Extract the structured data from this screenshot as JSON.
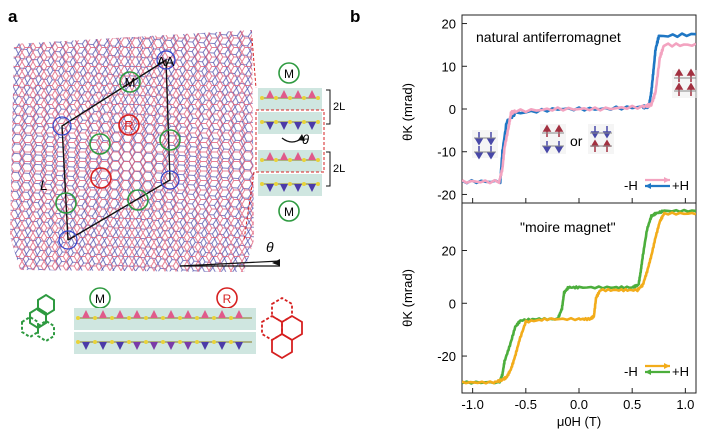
{
  "panel_a": {
    "letter": "a",
    "circle_m": "M",
    "circle_r": "R",
    "aa_label": "AA",
    "length_label": "L",
    "theta": "θ",
    "bilayer_label": "2L"
  },
  "panel_b": {
    "letter": "b",
    "top_title": "natural antiferromagnet",
    "bottom_title": "\"moire magnet\"",
    "or_text": "or",
    "ylabel_top": "θK (mrad)",
    "ylabel_bottom": "θK (mrad)",
    "xlabel": "μ0H (T)",
    "legend_minus": "-H",
    "legend_plus": "+H"
  },
  "colors": {
    "lattice_red": "#e0607a",
    "lattice_blue": "#5a5ab0",
    "m_green": "#2e9a40",
    "r_red": "#d62020",
    "blue_trace": "#1f77c4",
    "pink_trace": "#f3a3c0",
    "green_trace": "#4cae3c",
    "orange_trace": "#f2ac1a",
    "layer_bg": "#cfe6e0"
  },
  "chart_data": [
    {
      "type": "line",
      "title": "natural antiferromagnet",
      "xlabel": "μ0H (T)",
      "ylabel": "θK (mrad)",
      "xlim": [
        -1.1,
        1.1
      ],
      "ylim": [
        -22,
        22
      ],
      "yticks": [
        -20,
        -10,
        0,
        10,
        20
      ],
      "xticks": [
        -1.0,
        -0.5,
        0.0,
        0.5,
        1.0
      ],
      "series": [
        {
          "name": "-H",
          "color": "#1f77c4",
          "x": [
            1.1,
            0.75,
            0.72,
            0.7,
            0.68,
            0.66,
            0.64,
            0.6,
            0.2,
            -0.2,
            -0.6,
            -0.68,
            -0.72,
            -0.74,
            -1.1
          ],
          "y": [
            17.5,
            17,
            14,
            9,
            4,
            1,
            0.5,
            0.5,
            0,
            0,
            -1,
            -3,
            -10,
            -17,
            -17
          ]
        },
        {
          "name": "+H",
          "color": "#f3a3c0",
          "x": [
            -1.1,
            -0.75,
            -0.72,
            -0.7,
            -0.66,
            -0.64,
            -0.6,
            -0.2,
            0.2,
            0.6,
            0.68,
            0.72,
            0.76,
            0.8,
            1.1
          ],
          "y": [
            -17,
            -17,
            -14,
            -9,
            -4,
            -1,
            -0.5,
            0,
            0,
            0.5,
            1,
            4,
            12,
            15,
            15
          ]
        }
      ]
    },
    {
      "type": "line",
      "title": "\"moire magnet\"",
      "xlabel": "μ0H (T)",
      "ylabel": "θK (mrad)",
      "xlim": [
        -1.1,
        1.1
      ],
      "ylim": [
        -34,
        38
      ],
      "yticks": [
        -20,
        0,
        20
      ],
      "xticks": [
        -1.0,
        -0.5,
        0.0,
        0.5,
        1.0
      ],
      "series": [
        {
          "name": "-H",
          "color": "#4cae3c",
          "x": [
            1.1,
            0.8,
            0.72,
            0.68,
            0.64,
            0.6,
            0.58,
            0.56,
            0.5,
            0.3,
            0.0,
            -0.1,
            -0.14,
            -0.16,
            -0.2,
            -0.4,
            -0.55,
            -0.6,
            -0.65,
            -0.7,
            -0.72,
            -0.75,
            -1.1
          ],
          "y": [
            35,
            35,
            34,
            33,
            28,
            18,
            12,
            7,
            6,
            6,
            6,
            6,
            4,
            -2,
            -6,
            -6,
            -6.5,
            -9,
            -16,
            -22,
            -27,
            -30,
            -30
          ]
        },
        {
          "name": "+H",
          "color": "#f2ac1a",
          "x": [
            -1.1,
            -0.8,
            -0.72,
            -0.68,
            -0.64,
            -0.6,
            -0.56,
            -0.5,
            -0.3,
            0.0,
            0.1,
            0.14,
            0.16,
            0.2,
            0.4,
            0.55,
            0.6,
            0.64,
            0.68,
            0.72,
            0.76,
            0.8,
            1.1
          ],
          "y": [
            -30,
            -30,
            -29,
            -28,
            -25,
            -20,
            -14,
            -7,
            -6,
            -6,
            -6,
            -5,
            2,
            5,
            5,
            5,
            7,
            12,
            18,
            25,
            31,
            34,
            34
          ]
        }
      ]
    }
  ]
}
